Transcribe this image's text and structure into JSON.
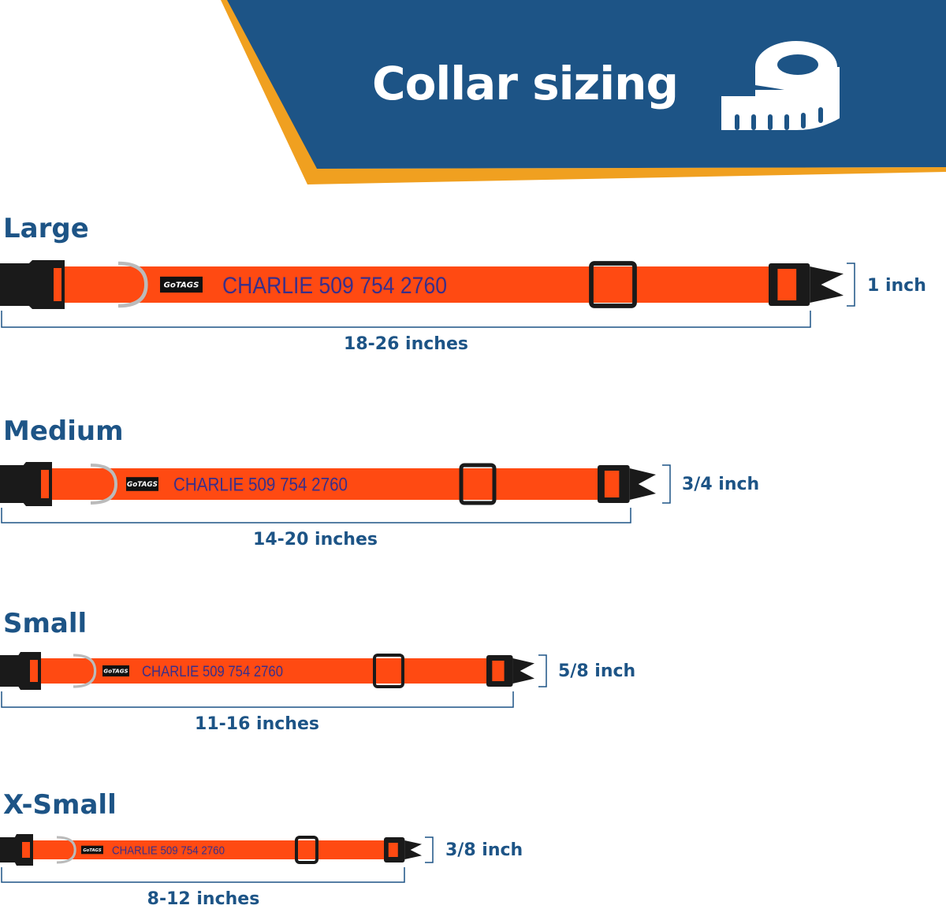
{
  "header": {
    "title": "Collar sizing",
    "icon": "tape-measure-icon",
    "colors": {
      "banner": "#1d5486",
      "accent_stripe": "#f0a020",
      "collar": "#ff4a12",
      "embroidery": "#3a2f8a",
      "text": "#1d5486"
    }
  },
  "collar": {
    "brand_logo": "GoTAGS",
    "embroidery": "CHARLIE 509 754 2760"
  },
  "sizes": [
    {
      "name": "Large",
      "width": "1 inch",
      "length": "18-26 inches"
    },
    {
      "name": "Medium",
      "width": "3/4 inch",
      "length": "14-20 inches"
    },
    {
      "name": "Small",
      "width": "5/8 inch",
      "length": "11-16 inches"
    },
    {
      "name": "X-Small",
      "width": "3/8 inch",
      "length": "8-12 inches"
    }
  ]
}
